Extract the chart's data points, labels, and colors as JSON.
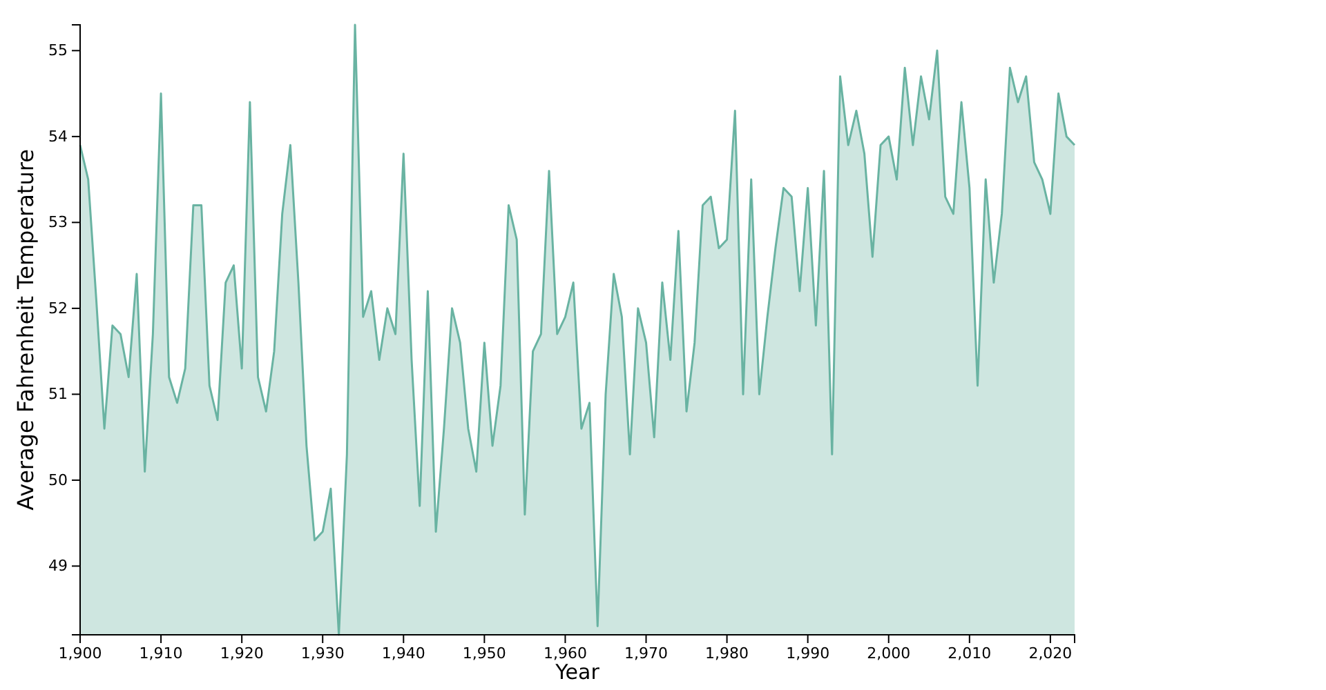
{
  "chart_data": {
    "type": "area",
    "xlabel": "Year",
    "ylabel": "Average Fahrenheit Temperature",
    "x": [
      1900,
      1901,
      1902,
      1903,
      1904,
      1905,
      1906,
      1907,
      1908,
      1909,
      1910,
      1911,
      1912,
      1913,
      1914,
      1915,
      1916,
      1917,
      1918,
      1919,
      1920,
      1921,
      1922,
      1923,
      1924,
      1925,
      1926,
      1927,
      1928,
      1929,
      1930,
      1931,
      1932,
      1933,
      1934,
      1935,
      1936,
      1937,
      1938,
      1939,
      1940,
      1941,
      1942,
      1943,
      1944,
      1945,
      1946,
      1947,
      1948,
      1949,
      1950,
      1951,
      1952,
      1953,
      1954,
      1955,
      1956,
      1957,
      1958,
      1959,
      1960,
      1961,
      1962,
      1963,
      1964,
      1965,
      1966,
      1967,
      1968,
      1969,
      1970,
      1971,
      1972,
      1973,
      1974,
      1975,
      1976,
      1977,
      1978,
      1979,
      1980,
      1981,
      1982,
      1983,
      1984,
      1985,
      1986,
      1987,
      1988,
      1989,
      1990,
      1991,
      1992,
      1993,
      1994,
      1995,
      1996,
      1997,
      1998,
      1999,
      2000,
      2001,
      2002,
      2003,
      2004,
      2005,
      2006,
      2007,
      2008,
      2009,
      2010,
      2011,
      2012,
      2013,
      2014,
      2015,
      2016,
      2017,
      2018,
      2019,
      2020,
      2021,
      2022,
      2023
    ],
    "series": [
      {
        "color": "#69b3a2",
        "values": [
          53.9,
          53.5,
          52.1,
          50.6,
          51.8,
          51.7,
          51.2,
          52.4,
          50.1,
          51.7,
          54.5,
          51.2,
          50.9,
          51.3,
          53.2,
          53.2,
          51.1,
          50.7,
          52.3,
          52.5,
          51.3,
          54.4,
          51.2,
          50.8,
          51.5,
          53.1,
          53.9,
          52.3,
          50.4,
          49.3,
          49.4,
          49.9,
          48.2,
          50.3,
          55.3,
          51.9,
          52.2,
          51.4,
          52.0,
          51.7,
          53.8,
          51.4,
          49.7,
          52.2,
          49.4,
          50.6,
          52.0,
          51.6,
          50.6,
          50.1,
          51.6,
          50.4,
          51.1,
          53.2,
          52.8,
          49.6,
          51.5,
          51.7,
          53.6,
          51.7,
          51.9,
          52.3,
          50.6,
          50.9,
          48.3,
          51.0,
          52.4,
          51.9,
          50.3,
          52.0,
          51.6,
          50.5,
          52.3,
          51.4,
          52.9,
          50.8,
          51.6,
          53.2,
          53.3,
          52.7,
          52.8,
          54.3,
          51.0,
          53.5,
          51.0,
          51.9,
          52.7,
          53.4,
          53.3,
          52.2,
          53.4,
          51.8,
          53.6,
          50.3,
          54.7,
          53.9,
          54.3,
          53.8,
          52.6,
          53.9,
          54.0,
          53.5,
          54.8,
          53.9,
          54.7,
          54.2,
          55.0,
          53.3,
          53.1,
          54.4,
          53.4,
          51.1,
          53.5,
          52.3,
          53.1,
          54.8,
          54.4,
          54.7,
          53.7,
          53.5,
          53.1,
          54.5,
          54.0,
          53.9
        ]
      }
    ],
    "xlim": [
      1900,
      2023
    ],
    "ylim": [
      48.2,
      55.3
    ],
    "xticks": [
      {
        "value": 1900,
        "label": "1,900"
      },
      {
        "value": 1910,
        "label": "1,910"
      },
      {
        "value": 1920,
        "label": "1,920"
      },
      {
        "value": 1930,
        "label": "1,930"
      },
      {
        "value": 1940,
        "label": "1,940"
      },
      {
        "value": 1950,
        "label": "1,950"
      },
      {
        "value": 1960,
        "label": "1,960"
      },
      {
        "value": 1970,
        "label": "1,970"
      },
      {
        "value": 1980,
        "label": "1,980"
      },
      {
        "value": 1990,
        "label": "1,990"
      },
      {
        "value": 2000,
        "label": "2,000"
      },
      {
        "value": 2010,
        "label": "2,010"
      },
      {
        "value": 2020,
        "label": "2,020"
      }
    ],
    "yticks": [
      49,
      50,
      51,
      52,
      53,
      54,
      55
    ]
  }
}
